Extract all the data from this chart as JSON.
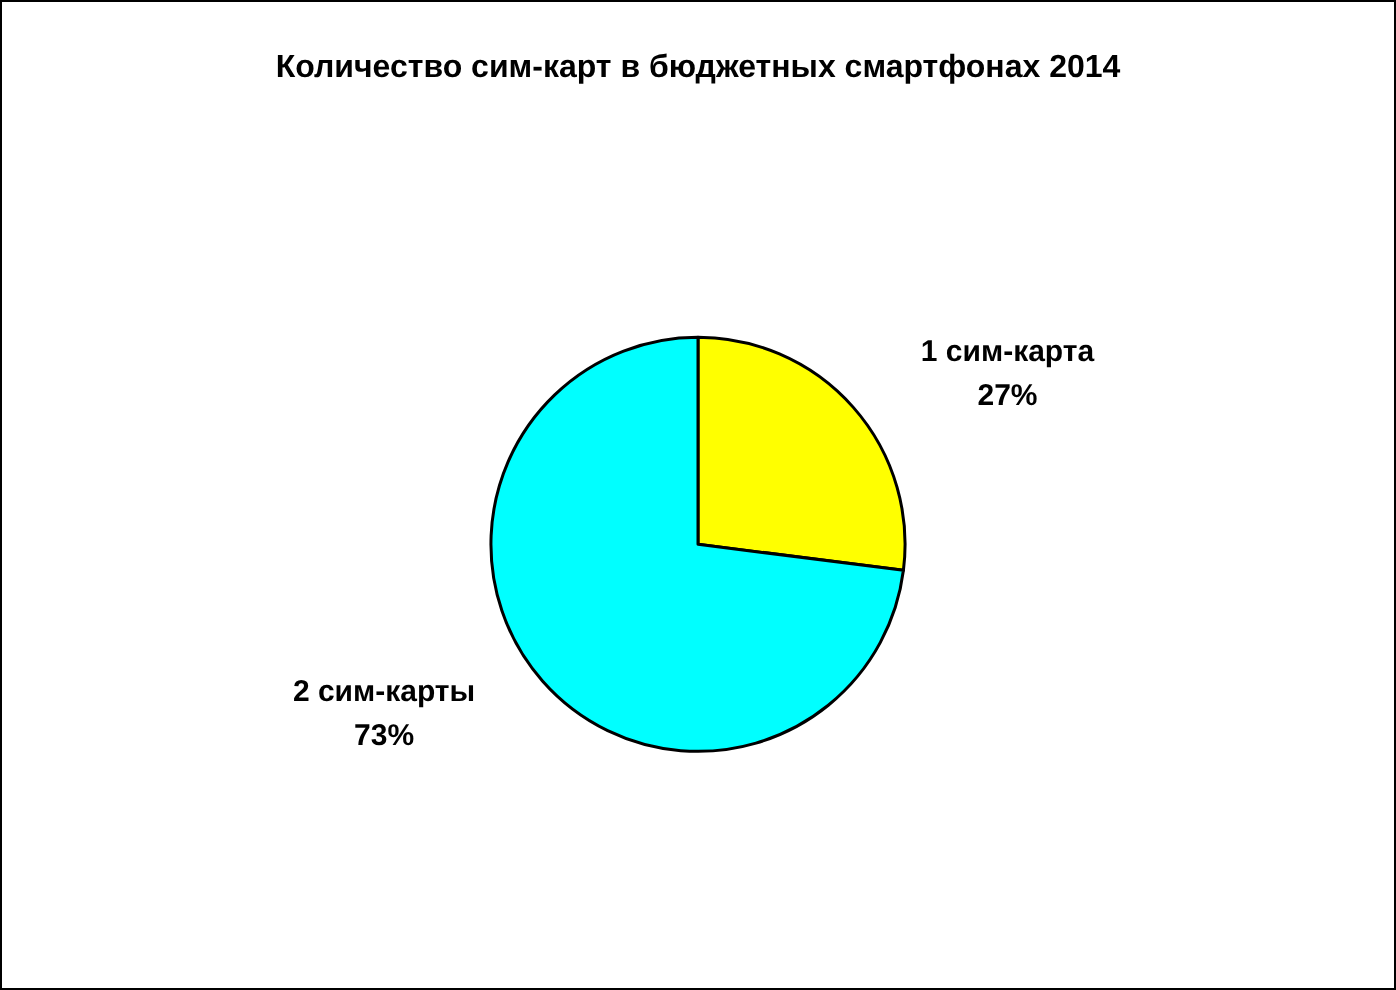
{
  "chart_data": {
    "type": "pie",
    "title": "Количество сим-карт в бюджетных смартфонах 2014",
    "categories": [
      "1 сим-карта",
      "2 сим-карты"
    ],
    "values": [
      27,
      73
    ],
    "colors": [
      "#ffff00",
      "#00ffff"
    ],
    "value_labels": [
      "27%",
      "73%"
    ],
    "legend": false
  }
}
